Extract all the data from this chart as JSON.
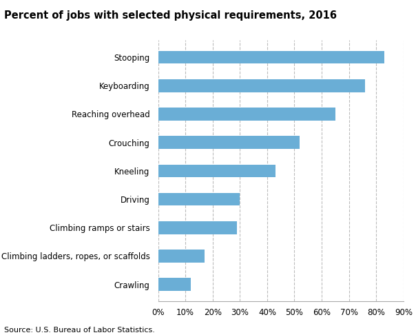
{
  "title": "Percent of jobs with selected physical requirements, 2016",
  "categories": [
    "Crawling",
    "Climbing ladders, ropes, or scaffolds",
    "Climbing ramps or stairs",
    "Driving",
    "Kneeling",
    "Crouching",
    "Reaching overhead",
    "Keyboarding",
    "Stooping"
  ],
  "values": [
    12,
    17,
    29,
    30,
    43,
    52,
    65,
    76,
    83
  ],
  "bar_color": "#6aaed6",
  "xlim": [
    0,
    90
  ],
  "xticks": [
    0,
    10,
    20,
    30,
    40,
    50,
    60,
    70,
    80,
    90
  ],
  "source": "Source: U.S. Bureau of Labor Statistics.",
  "title_fontsize": 10.5,
  "label_fontsize": 8.5,
  "tick_fontsize": 8.5,
  "source_fontsize": 8,
  "background_color": "#ffffff",
  "grid_color": "#bbbbbb"
}
